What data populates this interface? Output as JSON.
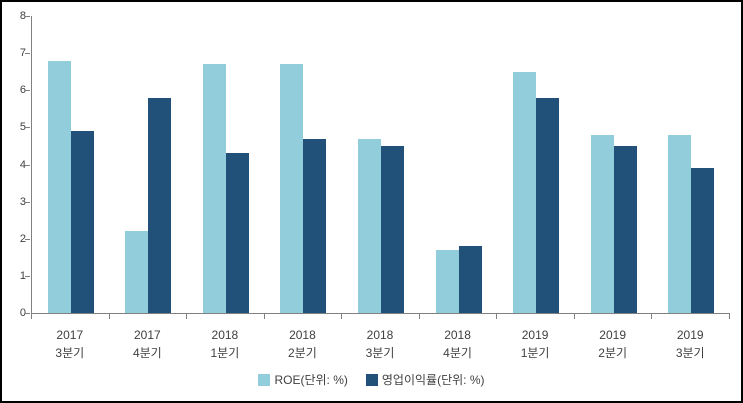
{
  "chart_data": {
    "type": "bar",
    "title": "",
    "xlabel": "",
    "ylabel": "",
    "categories": [
      {
        "year": "2017",
        "quarter": "3분기"
      },
      {
        "year": "2017",
        "quarter": "4분기"
      },
      {
        "year": "2018",
        "quarter": "1분기"
      },
      {
        "year": "2018",
        "quarter": "2분기"
      },
      {
        "year": "2018",
        "quarter": "3분기"
      },
      {
        "year": "2018",
        "quarter": "4분기"
      },
      {
        "year": "2019",
        "quarter": "1분기"
      },
      {
        "year": "2019",
        "quarter": "2분기"
      },
      {
        "year": "2019",
        "quarter": "3분기"
      }
    ],
    "series": [
      {
        "name": "ROE(단위: %)",
        "color": "#92CDDC",
        "values": [
          6.8,
          2.2,
          6.7,
          6.7,
          4.7,
          1.7,
          6.5,
          4.8,
          4.8
        ]
      },
      {
        "name": "영업이익률(단위: %)",
        "color": "#215079",
        "values": [
          4.9,
          5.8,
          4.3,
          4.7,
          4.5,
          1.8,
          5.8,
          4.5,
          3.9
        ]
      }
    ],
    "ylim": [
      0,
      8
    ],
    "yticks": [
      "0",
      "1",
      "2",
      "3",
      "4",
      "5",
      "6",
      "7",
      "8"
    ],
    "grid": false,
    "legend_position": "bottom"
  },
  "colors": {
    "axis": "#808080",
    "text": "#404040",
    "border": "#000000",
    "background": "#FFFFFF",
    "series_roe": "#92CDDC",
    "series_operating_margin": "#215079"
  }
}
